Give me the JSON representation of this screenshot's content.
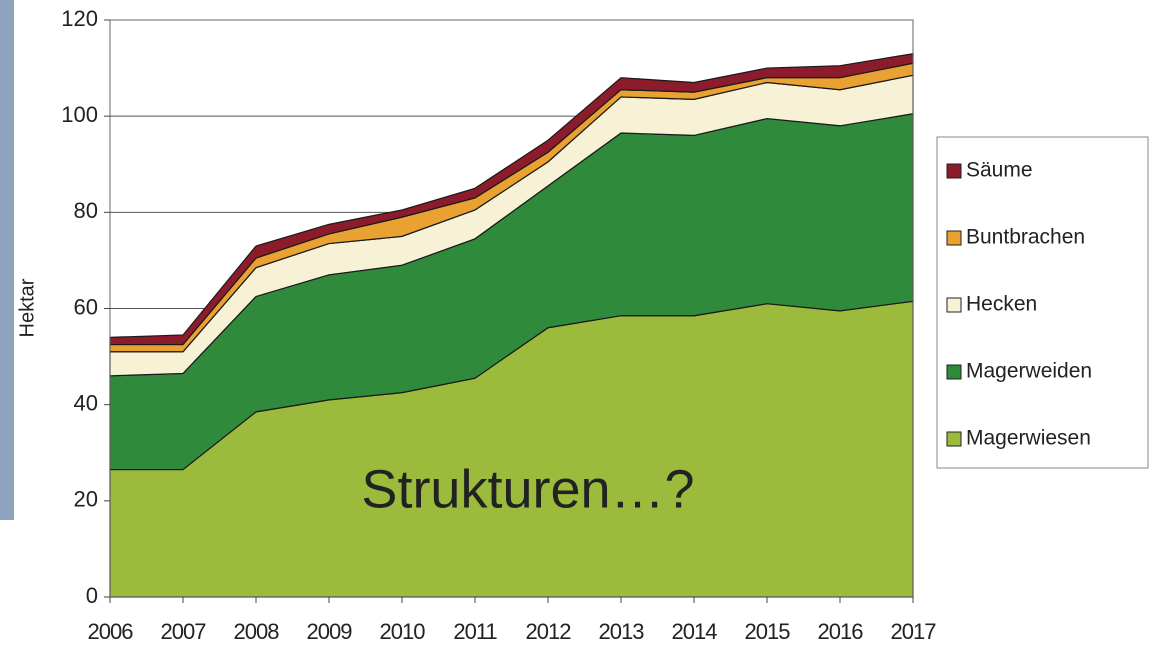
{
  "chart_data": {
    "type": "stacked_area",
    "y_label": "Hektar",
    "annotation": "Strukturen…?",
    "x": [
      2006,
      2007,
      2008,
      2009,
      2010,
      2011,
      2012,
      2013,
      2014,
      2015,
      2016,
      2017
    ],
    "xlim": [
      2006,
      2017
    ],
    "xticks": [
      2006,
      2007,
      2008,
      2009,
      2010,
      2011,
      2012,
      2013,
      2014,
      2015,
      2016,
      2017
    ],
    "ylim": [
      0,
      120
    ],
    "yticks": [
      0,
      20,
      40,
      60,
      80,
      100,
      120
    ],
    "grid": true,
    "legend": "right",
    "series": [
      {
        "name": "Magerwiesen",
        "color": "#9cbb3c",
        "values": [
          26.5,
          26.5,
          38.5,
          41,
          42.5,
          45.5,
          56,
          58.5,
          58.5,
          61,
          59.5,
          61.5
        ]
      },
      {
        "name": "Magerweiden",
        "color": "#2f8a3c",
        "values": [
          19.5,
          20,
          24,
          26,
          26.5,
          29,
          29.5,
          38,
          37.5,
          38.5,
          38.5,
          39
        ]
      },
      {
        "name": "Hecken",
        "color": "#f7f1d6",
        "values": [
          5,
          4.5,
          6,
          6.5,
          6,
          6,
          5,
          7.5,
          7.5,
          7.5,
          7.5,
          8
        ]
      },
      {
        "name": "Buntbrachen",
        "color": "#e9a232",
        "values": [
          1.5,
          1.5,
          2,
          2,
          4,
          2.5,
          2,
          1.5,
          1.5,
          1,
          2.5,
          2.5
        ]
      },
      {
        "name": "Säume",
        "color": "#8c1b2b",
        "values": [
          1.5,
          2,
          2.5,
          2,
          1.5,
          2,
          2.5,
          2.5,
          2,
          2,
          2.5,
          2
        ]
      }
    ]
  }
}
